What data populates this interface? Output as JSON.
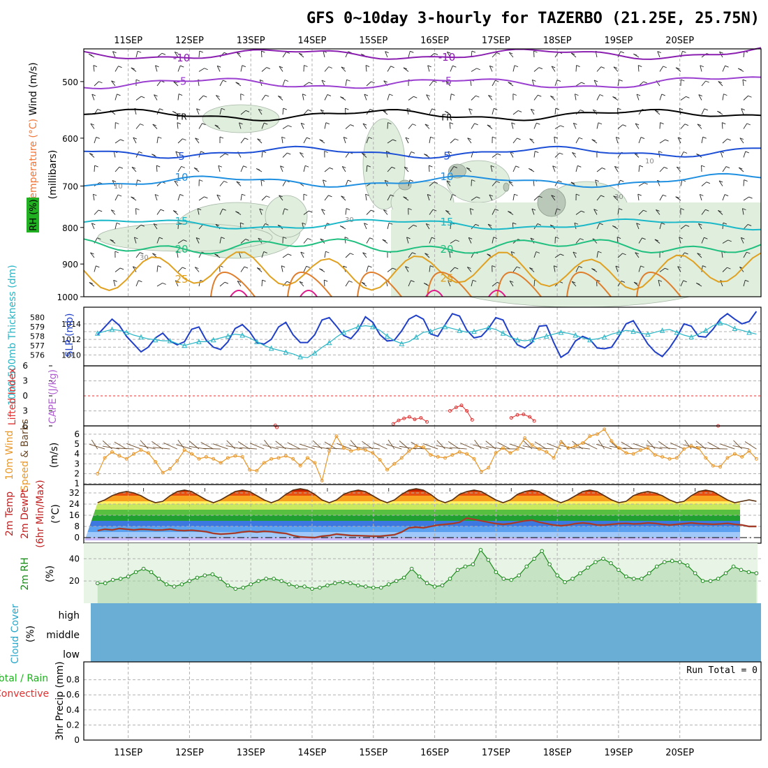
{
  "chart_data": [
    {
      "panel": "upper-air",
      "type": "contour",
      "title": "GFS 0~10day 3-hourly for TAZERBO (21.25E, 25.75N)",
      "dates": [
        "11SEP",
        "12SEP",
        "13SEP",
        "14SEP",
        "15SEP",
        "16SEP",
        "17SEP",
        "18SEP",
        "19SEP",
        "20SEP"
      ],
      "ylabel_parts": [
        "RH (%)",
        "Temperature (°C)",
        "Wind (m/s)"
      ],
      "ylabel2": "(millibars)",
      "ylim": [
        1000,
        450
      ],
      "yticks": [
        500,
        600,
        700,
        800,
        900,
        1000
      ],
      "log_scale": true,
      "temperature_contours": [
        {
          "label": "-10",
          "color": "#8a1fb0",
          "mb": 458
        },
        {
          "label": "-5",
          "color": "#9a3fd0",
          "mb": 503
        },
        {
          "label": "FR",
          "color": "#000000",
          "mb": 557
        },
        {
          "label": "5",
          "color": "#1c4fd6",
          "mb": 628
        },
        {
          "label": "10",
          "color": "#1f8fe0",
          "mb": 690
        },
        {
          "label": "15",
          "color": "#1ab8c8",
          "mb": 792
        },
        {
          "label": "20",
          "color": "#1fbf7f",
          "mb": 850
        },
        {
          "label": "25",
          "color": "#e0a020",
          "mb": 920
        }
      ],
      "rh_labels": [
        "10",
        "30",
        "30",
        "10",
        "30"
      ],
      "rh_fill": "#dfeedd"
    },
    {
      "panel": "thickness-slp",
      "type": "line",
      "ylabel_left": "1000-500mb Thickness (dm)",
      "ylabel_right": "SLP (mb)",
      "yticks_thickness": [
        576,
        577,
        578,
        579,
        580
      ],
      "yticks_slp": [
        1010,
        1012,
        1014
      ],
      "series": [
        {
          "name": "SLP (mb)",
          "color": "#1f3fc8",
          "values": [
            1012.6,
            1013.6,
            1014.6,
            1013.8,
            1012.4,
            1011.4,
            1010.4,
            1011.0,
            1012.2,
            1012.8,
            1011.8,
            1011.3,
            1011.7,
            1013.3,
            1013.6,
            1011.9,
            1011.0,
            1010.7,
            1011.7,
            1013.4,
            1013.9,
            1013.0,
            1011.6,
            1011.4,
            1012.0,
            1013.6,
            1014.2,
            1012.6,
            1011.6,
            1011.6,
            1012.6,
            1014.5,
            1014.8,
            1013.7,
            1012.5,
            1012.1,
            1013.2,
            1014.9,
            1014.2,
            1012.6,
            1011.8,
            1011.9,
            1013.1,
            1014.6,
            1015.1,
            1014.6,
            1012.7,
            1012.4,
            1013.9,
            1015.3,
            1015.0,
            1013.2,
            1012.2,
            1012.4,
            1013.4,
            1014.8,
            1014.5,
            1012.6,
            1011.3,
            1010.9,
            1011.6,
            1013.7,
            1013.8,
            1011.6,
            1009.7,
            1010.3,
            1011.8,
            1012.4,
            1012.0,
            1010.9,
            1010.8,
            1011.0,
            1012.4,
            1014.0,
            1014.4,
            1012.9,
            1011.4,
            1010.4,
            1009.8,
            1010.9,
            1012.3,
            1014.0,
            1013.7,
            1012.4,
            1012.3,
            1013.3,
            1014.6,
            1015.3,
            1014.6,
            1014.0,
            1014.3,
            1015.6
          ]
        },
        {
          "name": "1000-500mb Thickness (dm)",
          "color": "#27b5c5",
          "values": [
            578.3,
            578.5,
            578.7,
            578.6,
            578.4,
            578.1,
            577.9,
            577.7,
            577.6,
            577.5,
            577.5,
            577.2,
            577.0,
            577.2,
            577.4,
            577.4,
            577.6,
            577.8,
            578.0,
            578.2,
            578.1,
            577.8,
            577.4,
            577.0,
            576.7,
            576.5,
            576.3,
            576.1,
            575.8,
            575.7,
            576.2,
            576.8,
            577.3,
            577.9,
            578.4,
            578.7,
            579.0,
            579.1,
            579.0,
            578.6,
            578.0,
            577.5,
            577.2,
            577.4,
            577.9,
            578.4,
            578.5,
            578.8,
            579.0,
            578.8,
            578.6,
            578.4,
            578.5,
            578.7,
            578.9,
            578.7,
            578.3,
            577.9,
            577.6,
            577.5,
            577.6,
            577.8,
            578.0,
            578.2,
            578.4,
            578.3,
            578.1,
            577.8,
            577.6,
            577.7,
            577.9,
            578.2,
            578.4,
            578.6,
            578.5,
            578.3,
            578.2,
            578.4,
            578.6,
            578.7,
            578.4,
            578.1,
            577.9,
            578.2,
            578.6,
            579.1,
            579.4,
            579.2,
            578.8,
            578.6,
            578.4,
            578.2
          ]
        }
      ]
    },
    {
      "panel": "lifted-cape",
      "type": "line",
      "ylabel_left": "Lifted Index",
      "ylabel_right": "CAPE (J/kg)",
      "yticks": [
        -6,
        -3,
        0,
        3,
        6
      ],
      "ytick_labels": [
        "6",
        "3",
        "0",
        "3",
        "6"
      ],
      "lifted_index_points": [
        {
          "t": 23.2,
          "li": 5.9
        },
        {
          "t": 23.4,
          "li": 6.3
        },
        {
          "t": 38.6,
          "li": 5.6
        },
        {
          "t": 39.3,
          "li": 4.9
        },
        {
          "t": 40.0,
          "li": 4.5
        },
        {
          "t": 40.7,
          "li": 4.2
        },
        {
          "t": 41.4,
          "li": 4.7
        },
        {
          "t": 42.2,
          "li": 4.4
        },
        {
          "t": 43.0,
          "li": 5.2
        },
        {
          "t": 46.0,
          "li": 3.0
        },
        {
          "t": 46.8,
          "li": 2.3
        },
        {
          "t": 47.5,
          "li": 1.9
        },
        {
          "t": 48.2,
          "li": 3.0
        },
        {
          "t": 48.9,
          "li": 4.8
        },
        {
          "t": 54.0,
          "li": 4.4
        },
        {
          "t": 54.8,
          "li": 3.8
        },
        {
          "t": 55.6,
          "li": 3.7
        },
        {
          "t": 56.4,
          "li": 4.2
        },
        {
          "t": 57.0,
          "li": 5.0
        },
        {
          "t": 81.0,
          "li": 6.0
        }
      ]
    },
    {
      "panel": "wind10m",
      "type": "line",
      "ylabel": "10m Wind Speed & Barbs (m/s)",
      "yticks": [
        1,
        2,
        3,
        4,
        5,
        6
      ],
      "series": [
        {
          "name": "10m Wind Speed",
          "color": "#e8982a",
          "values": [
            2.0,
            3.6,
            4.2,
            3.8,
            3.5,
            4.0,
            4.4,
            4.1,
            3.2,
            2.1,
            2.5,
            3.3,
            4.4,
            4.0,
            3.5,
            3.7,
            3.5,
            3.1,
            3.6,
            3.8,
            3.7,
            2.4,
            2.3,
            3.1,
            3.5,
            3.6,
            3.8,
            3.5,
            2.8,
            3.6,
            3.1,
            1.3,
            4.3,
            5.8,
            4.6,
            4.3,
            4.5,
            4.4,
            4.1,
            3.4,
            2.4,
            3.0,
            3.6,
            4.3,
            4.8,
            4.7,
            3.9,
            3.7,
            3.6,
            3.9,
            4.2,
            4.0,
            3.5,
            2.2,
            2.6,
            4.1,
            4.6,
            4.1,
            4.5,
            5.6,
            4.9,
            4.5,
            4.2,
            3.6,
            5.2,
            4.6,
            4.8,
            5.1,
            5.8,
            6.0,
            6.5,
            5.3,
            4.6,
            4.1,
            4.0,
            4.4,
            4.6,
            3.9,
            3.7,
            3.5,
            3.6,
            4.5,
            4.8,
            4.6,
            3.6,
            2.8,
            2.7,
            3.6,
            4.0,
            3.7,
            4.3,
            3.5
          ]
        }
      ]
    },
    {
      "panel": "temperature",
      "type": "area",
      "ylabel": "2m Temp 2m DewPt (6hr Min/Max) (°C)",
      "yticks": [
        0,
        8,
        16,
        24,
        32
      ],
      "series": [
        {
          "name": "2m Temp",
          "color": "#5a3010",
          "values": [
            25,
            27,
            30,
            32,
            33,
            32,
            30,
            27,
            25,
            26,
            30,
            33,
            34,
            33,
            30,
            27,
            25,
            27,
            30,
            33,
            34,
            33,
            30,
            27,
            25,
            27,
            31,
            34,
            35,
            34,
            31,
            27,
            25,
            27,
            31,
            33,
            34,
            33,
            30,
            27,
            25,
            27,
            31,
            34,
            35,
            34,
            31,
            27,
            25,
            27,
            31,
            33,
            34,
            33,
            30,
            27,
            25,
            27,
            31,
            33,
            34,
            33,
            30,
            27,
            25,
            27,
            30,
            33,
            34,
            33,
            30,
            27,
            25,
            26,
            30,
            32,
            33,
            32,
            30,
            27,
            25,
            26,
            30,
            33,
            34,
            33,
            30,
            27,
            25,
            26,
            27,
            26
          ]
        },
        {
          "name": "2m DewPt",
          "color": "#c02020",
          "values": [
            5,
            6,
            5.5,
            6.5,
            6,
            5.5,
            6,
            5.8,
            5.4,
            5.5,
            6,
            5.2,
            5,
            5.3,
            4.8,
            4.2,
            3,
            2.5,
            2.8,
            3.2,
            4,
            4.5,
            4,
            4.5,
            4.2,
            3.5,
            3,
            1.5,
            0.5,
            0.2,
            0,
            1,
            1.5,
            2.5,
            2,
            1.5,
            1.4,
            1.2,
            1,
            1,
            1.5,
            2,
            4,
            7,
            7.5,
            7,
            8,
            9,
            9.5,
            10,
            11,
            14,
            13,
            12,
            11,
            10,
            9.5,
            10,
            11,
            12,
            12.5,
            11,
            10,
            9,
            8.5,
            9,
            10,
            10.5,
            10,
            9,
            9,
            9.5,
            10,
            10.2,
            9.8,
            10,
            10.5,
            10.2,
            9.5,
            9,
            9.5,
            10,
            10.5,
            10,
            9.8,
            9.5,
            9.8,
            10.2,
            9.5,
            9,
            8,
            8
          ]
        }
      ]
    },
    {
      "panel": "rh2m",
      "type": "area",
      "ylabel": "2m RH (%)",
      "yticks": [
        20,
        40
      ],
      "series": [
        {
          "name": "2m RH",
          "color": "#1a8a1a",
          "values": [
            18,
            18,
            21,
            22,
            24,
            28,
            31,
            28,
            22,
            17,
            15,
            17,
            20,
            23,
            25,
            26,
            22,
            16,
            13,
            14,
            17,
            20,
            22,
            22,
            20,
            17,
            15,
            15,
            13,
            14,
            16,
            18,
            19,
            18,
            16,
            15,
            14,
            14,
            17,
            20,
            23,
            31,
            24,
            18,
            15,
            16,
            22,
            30,
            33,
            35,
            48,
            39,
            28,
            22,
            21,
            25,
            33,
            40,
            47,
            35,
            25,
            19,
            22,
            27,
            32,
            37,
            40,
            36,
            30,
            24,
            22,
            22,
            27,
            33,
            37,
            38,
            37,
            34,
            27,
            20,
            20,
            22,
            27,
            33,
            30,
            28,
            27
          ]
        }
      ]
    },
    {
      "panel": "cloud-cover",
      "type": "area",
      "ylabel": "Cloud Cover (%)",
      "levels": [
        "high",
        "middle",
        "low"
      ],
      "fill_color": "#6aaed6"
    },
    {
      "panel": "precip",
      "type": "bar",
      "ylabel": "3hr Precip (mm)",
      "left_labels": [
        "Total / Rain",
        "Convective"
      ],
      "yticks": [
        0,
        0.2,
        0.4,
        0.6,
        0.8
      ],
      "ylim": [
        0,
        1
      ],
      "values": [],
      "run_total": "Run Total = 0"
    }
  ]
}
